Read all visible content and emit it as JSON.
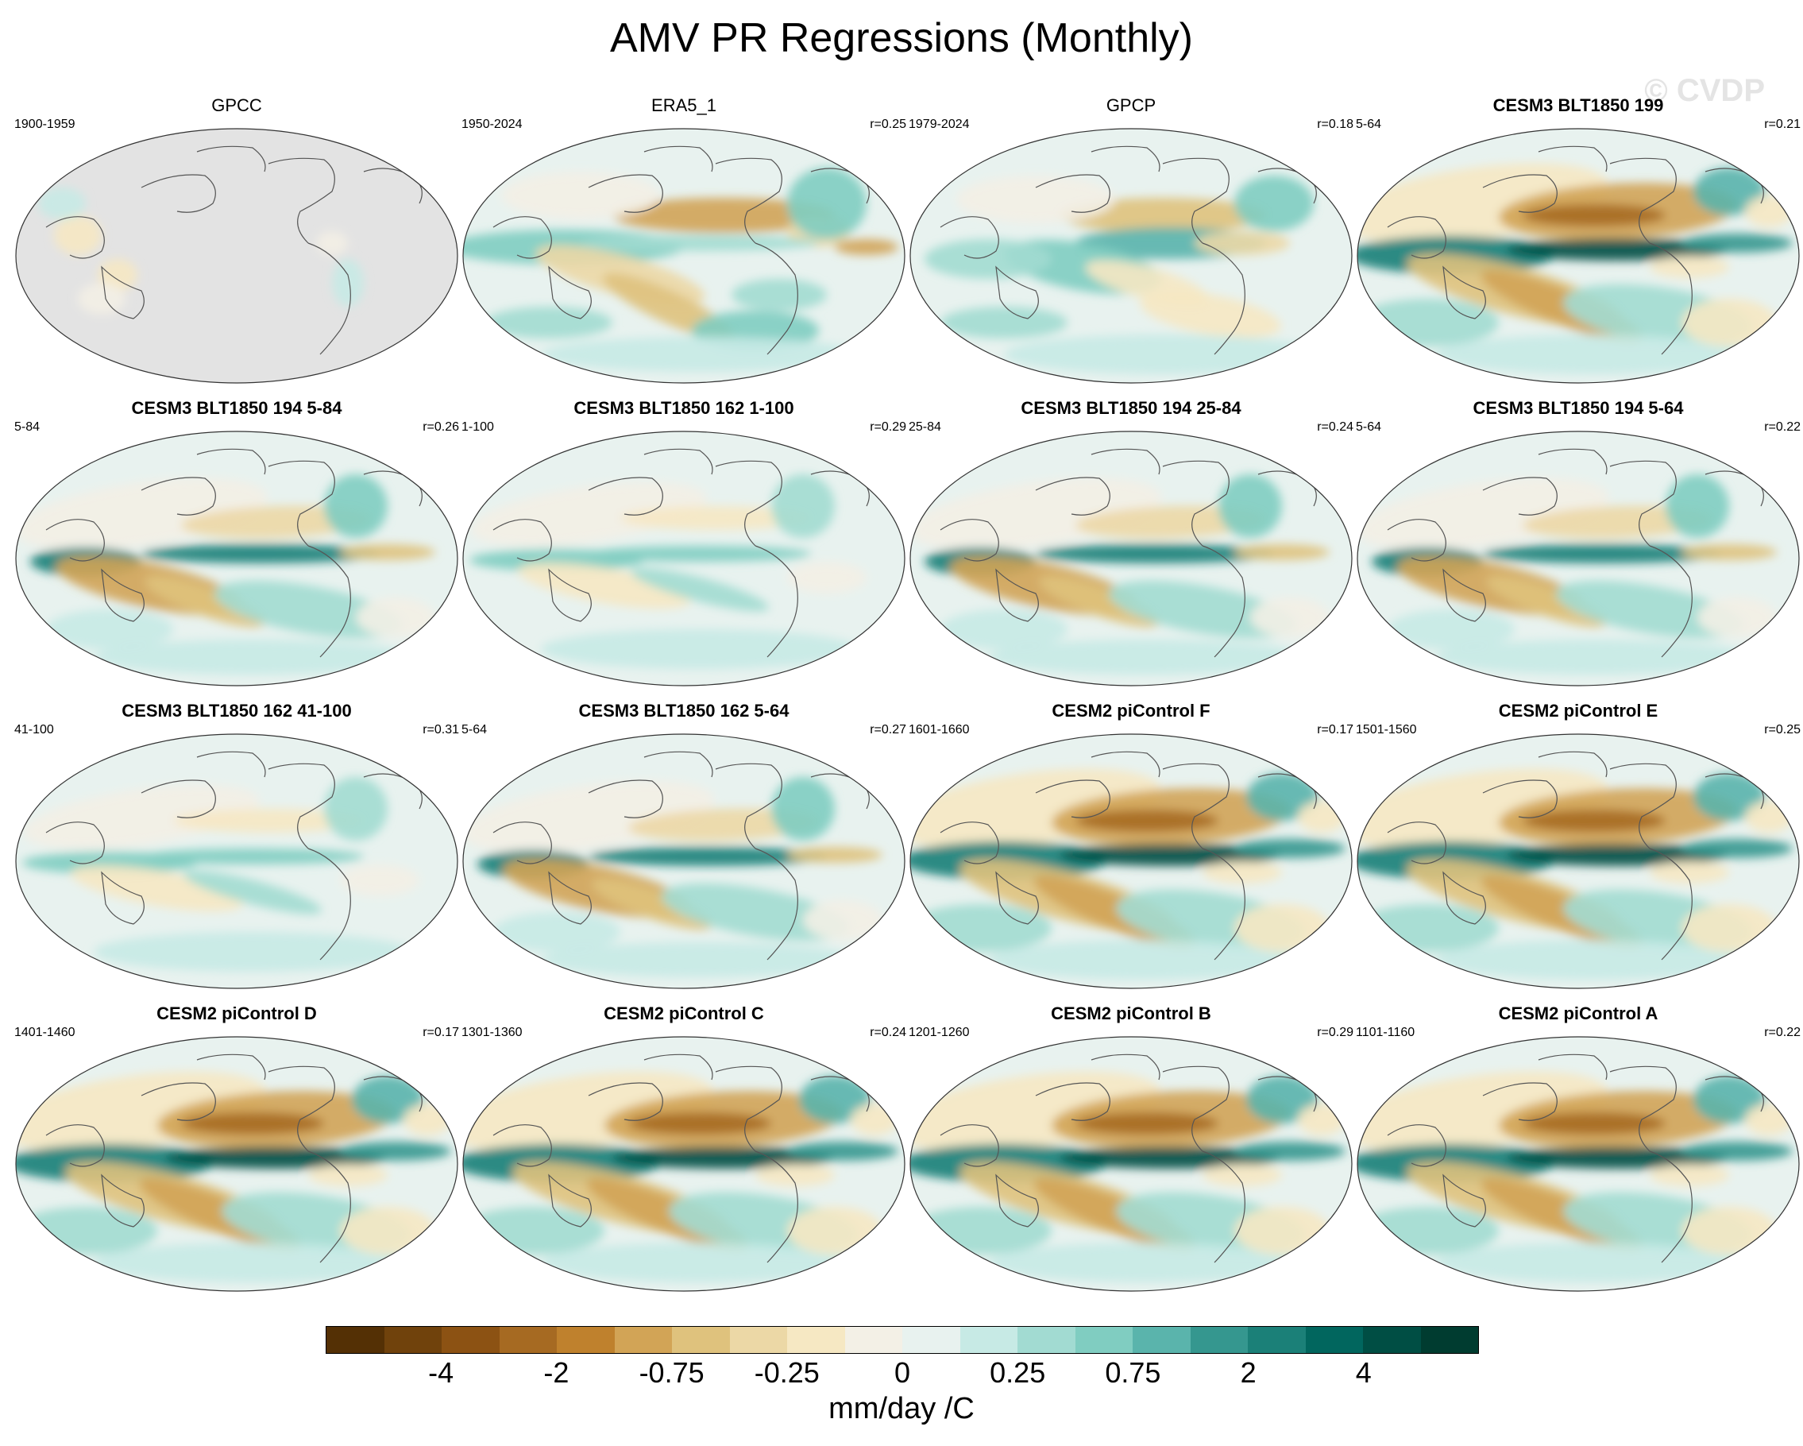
{
  "title": "AMV PR Regressions (Monthly)",
  "watermark": "© CVDP",
  "colors": {
    "no_data": "#e3e3e3",
    "coast": "#555555",
    "scale": [
      "#543005",
      "#70420c",
      "#8c5213",
      "#a66a22",
      "#bf812d",
      "#d2a456",
      "#dfc27d",
      "#ecd8a6",
      "#f6e8c3",
      "#f3f0e6",
      "#e8f2ef",
      "#c7eae5",
      "#a2dbd2",
      "#80cdc1",
      "#5ab4ac",
      "#35978f",
      "#1b8078",
      "#01665e",
      "#004e44",
      "#003c30"
    ]
  },
  "panels": [
    {
      "name": "GPCC",
      "period": "1900-1959",
      "r": "",
      "pattern": "gpcc"
    },
    {
      "name": "ERA5_1",
      "period": "1950-2024",
      "r": "r=0.25",
      "pattern": "era5"
    },
    {
      "name": "GPCP",
      "period": "1979-2024",
      "r": "r=0.18",
      "pattern": "gpcp"
    },
    {
      "name": "CESM3 BLT1850 199",
      "period": "5-64",
      "r": "r=0.21",
      "pattern": "strong"
    },
    {
      "name": "CESM3 BLT1850 194 5-84",
      "period": "5-84",
      "r": "r=0.26",
      "pattern": "medium"
    },
    {
      "name": "CESM3 BLT1850 162 1-100",
      "period": "1-100",
      "r": "r=0.29",
      "pattern": "weak"
    },
    {
      "name": "CESM3 BLT1850 194 25-84",
      "period": "25-84",
      "r": "r=0.24",
      "pattern": "medium"
    },
    {
      "name": "CESM3 BLT1850 194 5-64",
      "period": "5-64",
      "r": "r=0.22",
      "pattern": "medium"
    },
    {
      "name": "CESM3 BLT1850 162 41-100",
      "period": "41-100",
      "r": "r=0.31",
      "pattern": "weak"
    },
    {
      "name": "CESM3 BLT1850 162 5-64",
      "period": "5-64",
      "r": "r=0.27",
      "pattern": "medium"
    },
    {
      "name": "CESM2 piControl F",
      "period": "1601-1660",
      "r": "r=0.17",
      "pattern": "strong"
    },
    {
      "name": "CESM2 piControl E",
      "period": "1501-1560",
      "r": "r=0.25",
      "pattern": "strong"
    },
    {
      "name": "CESM2 piControl D",
      "period": "1401-1460",
      "r": "r=0.17",
      "pattern": "strong"
    },
    {
      "name": "CESM2 piControl C",
      "period": "1301-1360",
      "r": "r=0.24",
      "pattern": "strong"
    },
    {
      "name": "CESM2 piControl B",
      "period": "1201-1260",
      "r": "r=0.29",
      "pattern": "strong"
    },
    {
      "name": "CESM2 piControl A",
      "period": "1101-1160",
      "r": "r=0.22",
      "pattern": "strong"
    }
  ],
  "colorbar": {
    "labels": [
      "-4",
      "-2",
      "-0.75",
      "-0.25",
      "0",
      "0.25",
      "0.75",
      "2",
      "4"
    ],
    "units": "mm/day /C"
  }
}
